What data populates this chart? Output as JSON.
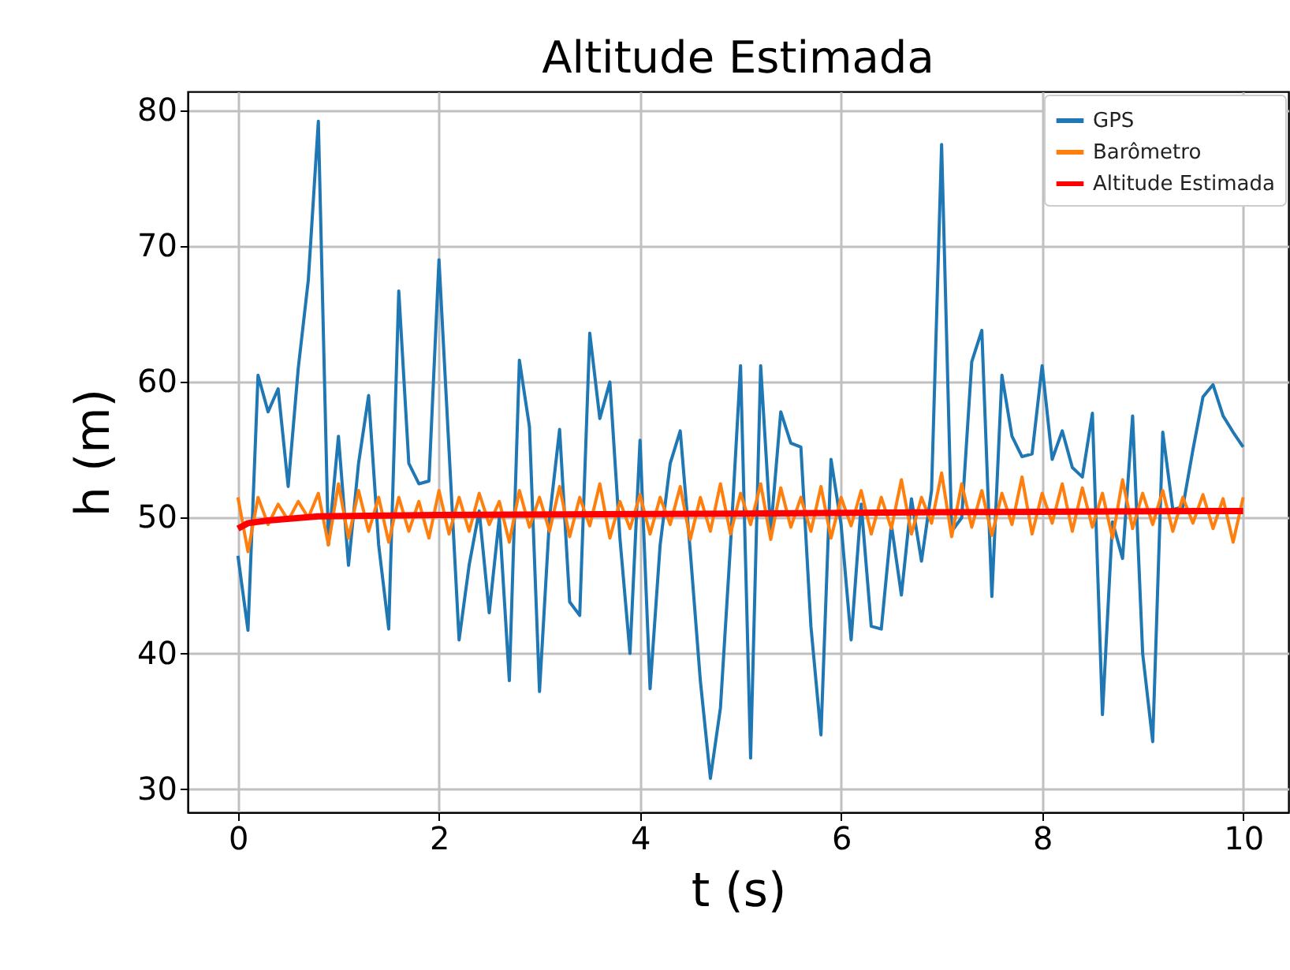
{
  "chart_data": {
    "type": "line",
    "title": "Altitude Estimada",
    "xlabel": "t (s)",
    "ylabel": "h (m)",
    "xlim": [
      -0.5,
      10.45
    ],
    "ylim": [
      28.3,
      81.4
    ],
    "xticks": [
      0,
      2,
      4,
      6,
      8,
      10
    ],
    "yticks": [
      30,
      40,
      50,
      60,
      70,
      80
    ],
    "grid": true,
    "legend": "top right",
    "series": [
      {
        "name": "GPS",
        "color": "#1f77b4",
        "x": [
          0,
          0.1,
          0.2,
          0.3,
          0.4,
          0.5,
          0.6,
          0.7,
          0.8,
          0.9,
          1,
          1.1,
          1.2,
          1.3,
          1.4,
          1.5,
          1.6,
          1.7,
          1.8,
          1.9,
          2,
          2.1,
          2.2,
          2.3,
          2.4,
          2.5,
          2.6,
          2.7,
          2.8,
          2.9,
          3,
          3.1,
          3.2,
          3.3,
          3.4,
          3.5,
          3.6,
          3.7,
          3.8,
          3.9,
          4,
          4.1,
          4.2,
          4.3,
          4.4,
          4.5,
          4.6,
          4.7,
          4.8,
          4.9,
          5,
          5.1,
          5.2,
          5.3,
          5.4,
          5.5,
          5.6,
          5.7,
          5.8,
          5.9,
          6,
          6.1,
          6.2,
          6.3,
          6.4,
          6.5,
          6.6,
          6.7,
          6.8,
          6.9,
          7,
          7.1,
          7.2,
          7.3,
          7.4,
          7.5,
          7.6,
          7.7,
          7.8,
          7.9,
          8,
          8.1,
          8.2,
          8.3,
          8.4,
          8.5,
          8.6,
          8.7,
          8.8,
          8.9,
          9,
          9.1,
          9.2,
          9.3,
          9.4,
          9.5,
          9.6,
          9.7,
          9.8,
          9.9,
          10
        ],
        "values": [
          47.2,
          41.7,
          60.5,
          57.8,
          59.5,
          52.3,
          61,
          67.5,
          79.2,
          48,
          56,
          46.5,
          54,
          59,
          48,
          41.8,
          66.7,
          54,
          52.5,
          52.7,
          69,
          55,
          41,
          46.5,
          50.5,
          43,
          50,
          38,
          61.6,
          56.7,
          37.2,
          50,
          56.5,
          43.8,
          42.8,
          63.6,
          57.3,
          60,
          48.5,
          40,
          55.7,
          37.4,
          48,
          54,
          56.4,
          47.5,
          38,
          30.8,
          36,
          48,
          61.2,
          32.3,
          61.2,
          49,
          57.8,
          55.5,
          55.2,
          42,
          34,
          54.3,
          49.5,
          41,
          51,
          42,
          41.8,
          49.5,
          44.3,
          51.4,
          46.8,
          52,
          77.5,
          49,
          50,
          61.5,
          63.8,
          44.2,
          60.5,
          56,
          54.5,
          54.7,
          61.2,
          54.3,
          56.4,
          53.7,
          53,
          57.7,
          35.5,
          49.7,
          47,
          57.5,
          40,
          33.5,
          56.3,
          50.6,
          50.8,
          55,
          58.9,
          59.8,
          57.5,
          56.3,
          55.2
        ]
      },
      {
        "name": "Barômetro",
        "color": "#ff7f0e",
        "x": [
          0,
          0.1,
          0.2,
          0.3,
          0.4,
          0.5,
          0.6,
          0.7,
          0.8,
          0.9,
          1,
          1.1,
          1.2,
          1.3,
          1.4,
          1.5,
          1.6,
          1.7,
          1.8,
          1.9,
          2,
          2.1,
          2.2,
          2.3,
          2.4,
          2.5,
          2.6,
          2.7,
          2.8,
          2.9,
          3,
          3.1,
          3.2,
          3.3,
          3.4,
          3.5,
          3.6,
          3.7,
          3.8,
          3.9,
          4,
          4.1,
          4.2,
          4.3,
          4.4,
          4.5,
          4.6,
          4.7,
          4.8,
          4.9,
          5,
          5.1,
          5.2,
          5.3,
          5.4,
          5.5,
          5.6,
          5.7,
          5.8,
          5.9,
          6,
          6.1,
          6.2,
          6.3,
          6.4,
          6.5,
          6.6,
          6.7,
          6.8,
          6.9,
          7,
          7.1,
          7.2,
          7.3,
          7.4,
          7.5,
          7.6,
          7.7,
          7.8,
          7.9,
          8,
          8.1,
          8.2,
          8.3,
          8.4,
          8.5,
          8.6,
          8.7,
          8.8,
          8.9,
          9,
          9.1,
          9.2,
          9.3,
          9.4,
          9.5,
          9.6,
          9.7,
          9.8,
          9.9,
          10
        ],
        "values": [
          51.5,
          47.5,
          51.5,
          49.5,
          51,
          49.8,
          51.2,
          50,
          51.8,
          48,
          52.5,
          48.5,
          52,
          49,
          51.5,
          48.2,
          51.5,
          49,
          51.2,
          48.5,
          52,
          48.8,
          51.5,
          49,
          51.8,
          49.5,
          51.2,
          48.2,
          52,
          49.3,
          51.5,
          49,
          52.3,
          48.6,
          51.5,
          49.4,
          52.5,
          48.5,
          51.2,
          49.2,
          51.7,
          48.8,
          51.5,
          49.5,
          52.3,
          48.4,
          51.5,
          49,
          52.5,
          48.8,
          51.8,
          49.5,
          52.5,
          48.4,
          52.2,
          49.3,
          51.5,
          49,
          52.3,
          48.5,
          51.5,
          49.4,
          52,
          48.8,
          51.5,
          49.2,
          52.8,
          48.8,
          51.5,
          49.6,
          53.3,
          48.6,
          52.5,
          49.3,
          52,
          48.7,
          51.8,
          49.5,
          53,
          48.8,
          51.8,
          49.6,
          52.5,
          49,
          52.2,
          49.3,
          51.8,
          48.5,
          52.8,
          49.2,
          51.8,
          49.5,
          52,
          49,
          51.5,
          49.6,
          51.7,
          49.2,
          51.4,
          48.2,
          51.5
        ]
      },
      {
        "name": "Altitude Estimada",
        "color": "#ff0000",
        "x": [
          0,
          0.1,
          0.3,
          0.8,
          2,
          5,
          7,
          10
        ],
        "values": [
          49.2,
          49.6,
          49.8,
          50.1,
          50.2,
          50.3,
          50.4,
          50.5
        ]
      }
    ]
  }
}
